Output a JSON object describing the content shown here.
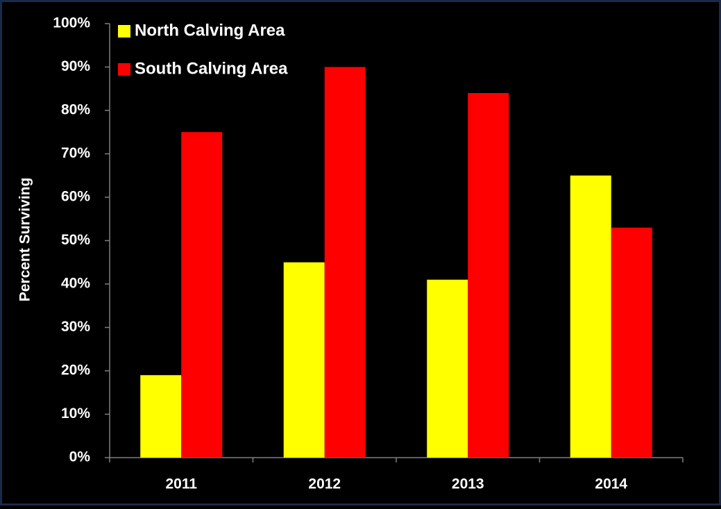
{
  "chart_data": {
    "type": "bar",
    "categories": [
      "2011",
      "2012",
      "2013",
      "2014"
    ],
    "series": [
      {
        "name": "North Calving Area",
        "color": "#ffff00",
        "values": [
          19,
          45,
          41,
          65
        ]
      },
      {
        "name": "South Calving Area",
        "color": "#ff0000",
        "values": [
          75,
          90,
          84,
          53
        ]
      }
    ],
    "ylabel": "Percent Surviving",
    "xlabel": "",
    "ylim": [
      0,
      100
    ],
    "y_ticks": [
      "0%",
      "10%",
      "20%",
      "30%",
      "40%",
      "50%",
      "60%",
      "70%",
      "80%",
      "90%",
      "100%"
    ],
    "grid": false,
    "legend_position": "top-left",
    "background": "#000000",
    "text_color": "#ffffff",
    "axis_color": "#7f7f7f"
  }
}
